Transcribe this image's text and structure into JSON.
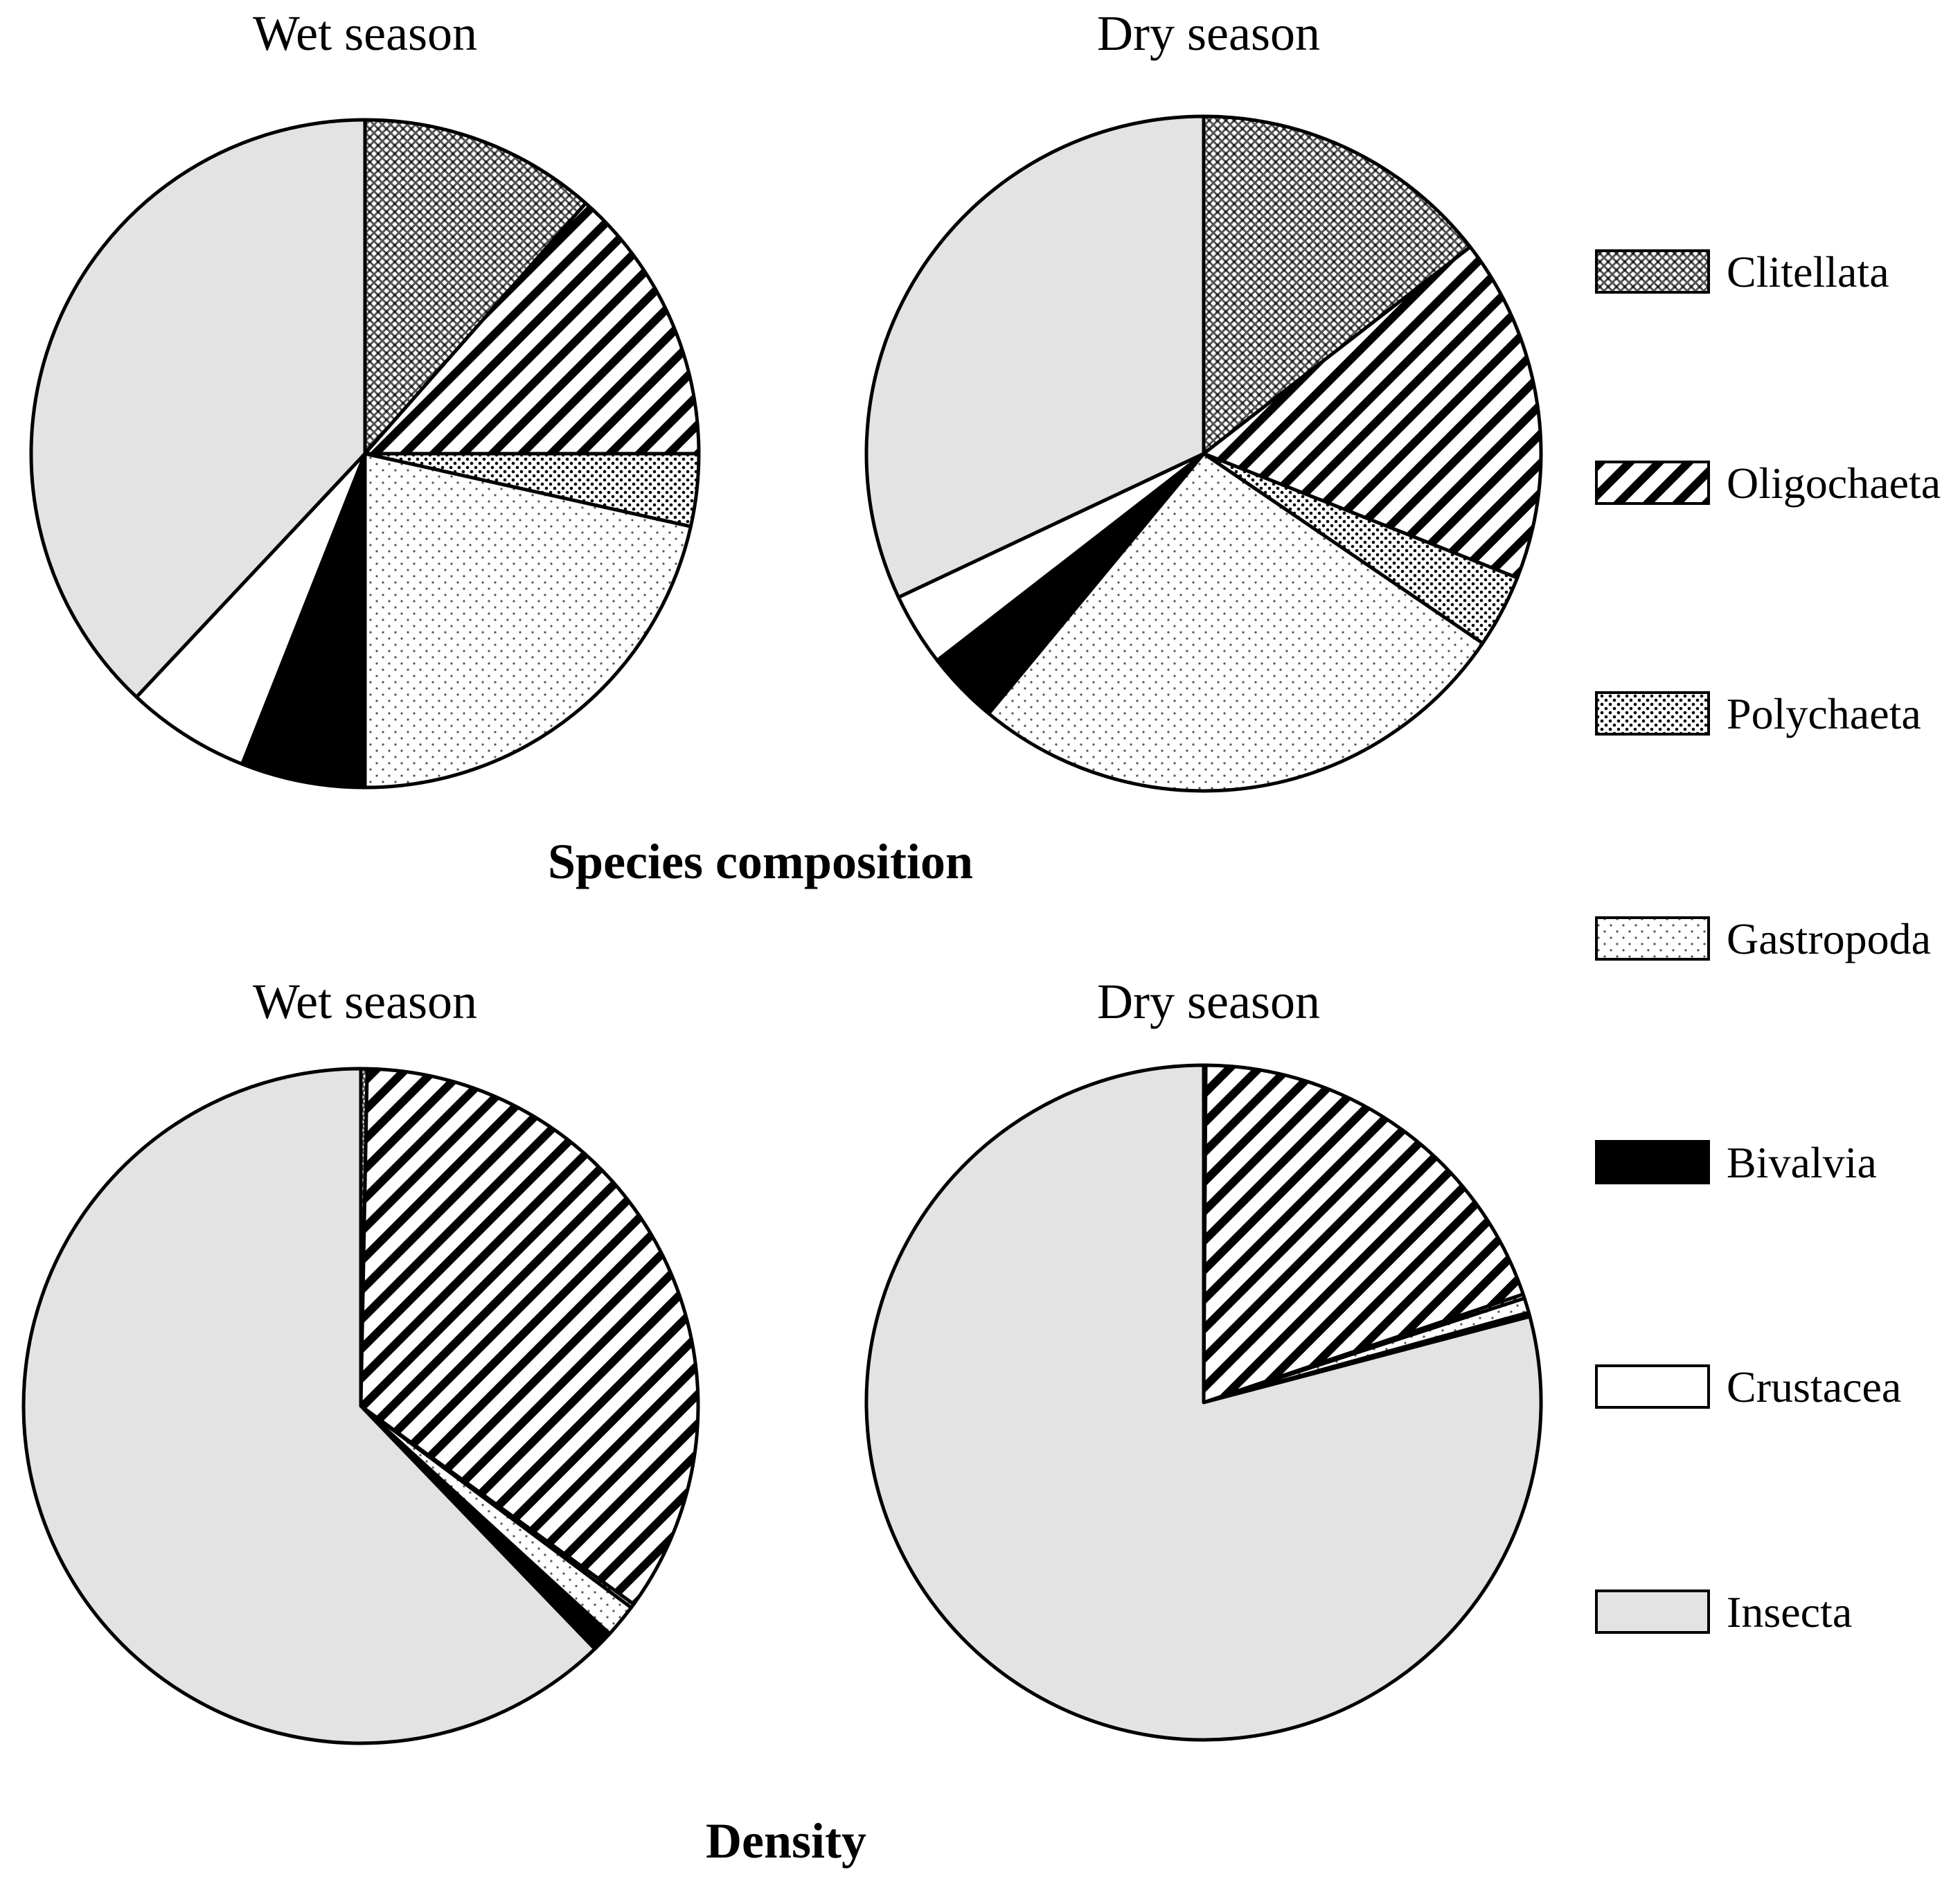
{
  "chart_data": [
    {
      "type": "pie",
      "group": "Species composition",
      "title": "Wet season",
      "start": "12 o'clock",
      "direction": "clockwise",
      "slices": [
        {
          "category": "Clitellata",
          "value": 11.5
        },
        {
          "category": "Oligochaeta",
          "value": 13.5
        },
        {
          "category": "Polychaeta",
          "value": 3.5
        },
        {
          "category": "Gastropoda",
          "value": 21.5
        },
        {
          "category": "Bivalvia",
          "value": 6.0
        },
        {
          "category": "Crustacea",
          "value": 6.0
        },
        {
          "category": "Insecta",
          "value": 38.0
        }
      ]
    },
    {
      "type": "pie",
      "group": "Species composition",
      "title": "Dry season",
      "start": "12 o'clock",
      "direction": "clockwise",
      "slices": [
        {
          "category": "Clitellata",
          "value": 14.5
        },
        {
          "category": "Oligochaeta",
          "value": 16.5
        },
        {
          "category": "Polychaeta",
          "value": 3.5
        },
        {
          "category": "Gastropoda",
          "value": 26.5
        },
        {
          "category": "Bivalvia",
          "value": 3.5
        },
        {
          "category": "Crustacea",
          "value": 3.5
        },
        {
          "category": "Insecta",
          "value": 32.0
        }
      ]
    },
    {
      "type": "pie",
      "group": "Density",
      "title": "Wet season",
      "start": "12 o'clock",
      "direction": "clockwise",
      "slices": [
        {
          "category": "Clitellata",
          "value": 0.3
        },
        {
          "category": "Oligochaeta",
          "value": 34.7
        },
        {
          "category": "Polychaeta",
          "value": 0.2
        },
        {
          "category": "Gastropoda",
          "value": 1.6
        },
        {
          "category": "Bivalvia",
          "value": 0.9
        },
        {
          "category": "Crustacea",
          "value": 0.1
        },
        {
          "category": "Insecta",
          "value": 62.2
        }
      ]
    },
    {
      "type": "pie",
      "group": "Density",
      "title": "Dry season",
      "start": "12 o'clock",
      "direction": "clockwise",
      "slices": [
        {
          "category": "Clitellata",
          "value": 0.1
        },
        {
          "category": "Oligochaeta",
          "value": 19.7
        },
        {
          "category": "Polychaeta",
          "value": 0.2
        },
        {
          "category": "Gastropoda",
          "value": 0.7
        },
        {
          "category": "Bivalvia",
          "value": 0.1
        },
        {
          "category": "Crustacea",
          "value": 0.1
        },
        {
          "category": "Insecta",
          "value": 79.1
        }
      ]
    }
  ],
  "section_titles": {
    "top": "Species composition",
    "bottom": "Density"
  },
  "legend": [
    {
      "label": "Clitellata",
      "pattern": "crosshatch"
    },
    {
      "label": "Oligochaeta",
      "pattern": "diagonal-stripes"
    },
    {
      "label": "Polychaeta",
      "pattern": "dense-dots"
    },
    {
      "label": "Gastropoda",
      "pattern": "sparse-dots"
    },
    {
      "label": "Bivalvia",
      "pattern": "solid-black"
    },
    {
      "label": "Crustacea",
      "pattern": "solid-white"
    },
    {
      "label": "Insecta",
      "pattern": "solid-light-gray"
    }
  ],
  "colors": {
    "ink": "#000000",
    "paper": "#ffffff",
    "insecta_fill": "#e3e3e3",
    "clitellata_dot": "#555555",
    "gastropoda_dot": "#6a6a6a"
  }
}
